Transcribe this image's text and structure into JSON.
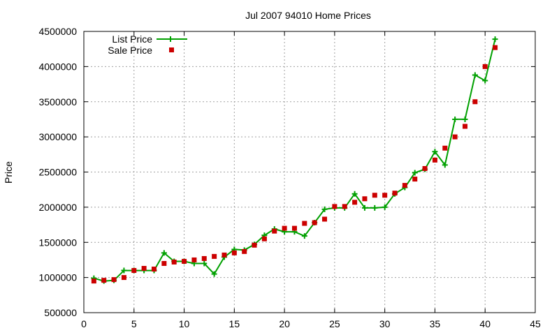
{
  "chart_data": {
    "type": "line",
    "title": "Jul 2007 94010 Home Prices",
    "xlabel": "",
    "ylabel": "Price",
    "xlim": [
      0,
      45
    ],
    "ylim": [
      500000,
      4500000
    ],
    "xticks": [
      0,
      5,
      10,
      15,
      20,
      25,
      30,
      35,
      40,
      45
    ],
    "yticks": [
      500000,
      1000000,
      1500000,
      2000000,
      2500000,
      3000000,
      3500000,
      4000000,
      4500000
    ],
    "grid": true,
    "legend_position": "top-left",
    "series": [
      {
        "name": "List Price",
        "style": "line-points",
        "marker": "plus",
        "color": "#00a000",
        "x": [
          1,
          2,
          3,
          4,
          5,
          6,
          7,
          8,
          9,
          10,
          11,
          12,
          13,
          14,
          15,
          16,
          17,
          18,
          19,
          20,
          21,
          22,
          23,
          24,
          25,
          26,
          27,
          28,
          29,
          30,
          31,
          32,
          33,
          34,
          35,
          36,
          37,
          38,
          39,
          40,
          41
        ],
        "values": [
          990000,
          950000,
          960000,
          1100000,
          1100000,
          1100000,
          1100000,
          1350000,
          1230000,
          1230000,
          1200000,
          1200000,
          1050000,
          1290000,
          1400000,
          1390000,
          1470000,
          1600000,
          1690000,
          1650000,
          1650000,
          1590000,
          1780000,
          1970000,
          1990000,
          1990000,
          2190000,
          1990000,
          1990000,
          2000000,
          2190000,
          2280000,
          2490000,
          2540000,
          2790000,
          2600000,
          3250000,
          3250000,
          3880000,
          3800000,
          4390000
        ]
      },
      {
        "name": "Sale Price",
        "style": "points",
        "marker": "square",
        "color": "#cc0000",
        "x": [
          1,
          2,
          3,
          4,
          5,
          6,
          7,
          8,
          9,
          10,
          11,
          12,
          13,
          14,
          15,
          16,
          17,
          18,
          19,
          20,
          21,
          22,
          23,
          24,
          25,
          26,
          27,
          28,
          29,
          30,
          31,
          32,
          33,
          34,
          35,
          36,
          37,
          38,
          39,
          40,
          41
        ],
        "values": [
          950000,
          960000,
          970000,
          1000000,
          1100000,
          1130000,
          1120000,
          1200000,
          1220000,
          1230000,
          1250000,
          1270000,
          1300000,
          1320000,
          1350000,
          1370000,
          1460000,
          1550000,
          1660000,
          1700000,
          1700000,
          1770000,
          1780000,
          1830000,
          2010000,
          2010000,
          2070000,
          2120000,
          2170000,
          2170000,
          2200000,
          2310000,
          2400000,
          2550000,
          2670000,
          2840000,
          3000000,
          3150000,
          3500000,
          4000000,
          4270000
        ]
      }
    ]
  }
}
